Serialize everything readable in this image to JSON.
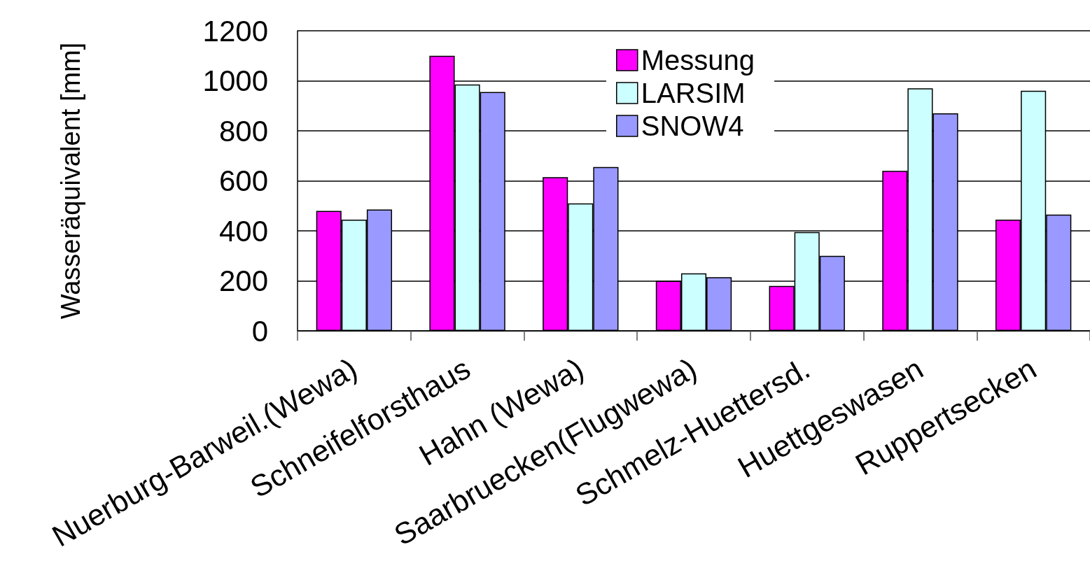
{
  "chart_data": {
    "type": "bar",
    "ylabel": "Wasseräquivalent [mm]",
    "categories": [
      "Nuerburg-Barweil.(Wewa)",
      "Schneifelforsthaus",
      "Hahn (Wewa)",
      "Saarbruecken(Flugwewa)",
      "Schmelz-Huettersd.",
      "Huettgeswasen",
      "Ruppertsecken"
    ],
    "series": [
      {
        "name": "Messung",
        "color": "#ff00ff",
        "values": [
          480,
          1100,
          615,
          200,
          180,
          640,
          445
        ]
      },
      {
        "name": "LARSIM",
        "color": "#ccffff",
        "values": [
          445,
          985,
          510,
          230,
          395,
          970,
          960
        ]
      },
      {
        "name": "SNOW4",
        "color": "#9999ff",
        "values": [
          485,
          955,
          655,
          215,
          300,
          870,
          465
        ]
      }
    ],
    "ylim": [
      0,
      1200
    ],
    "yticks": [
      0,
      200,
      400,
      600,
      800,
      1000,
      1200
    ],
    "grid": "y",
    "legend": "top"
  }
}
